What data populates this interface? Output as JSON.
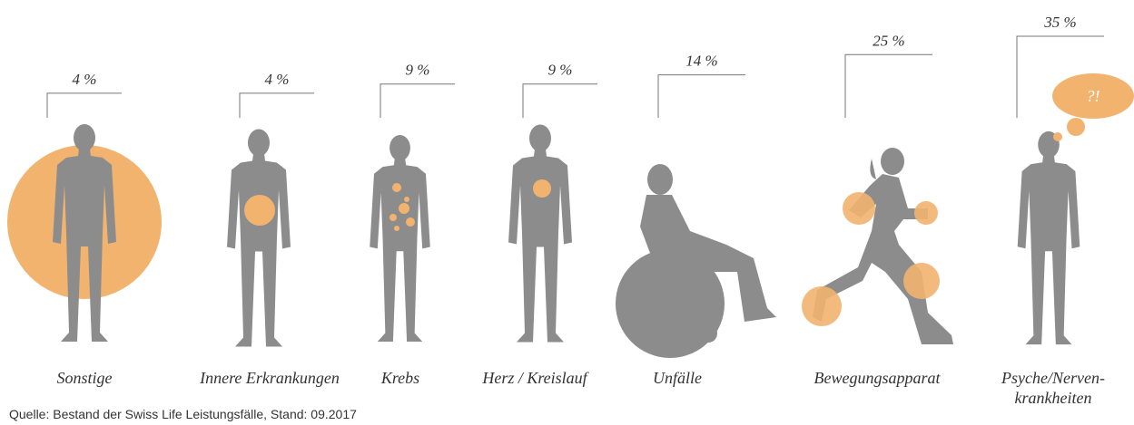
{
  "chart_data": {
    "type": "pictogram",
    "categories": [
      "Sonstige",
      "Innere Erkrankungen",
      "Krebs",
      "Herz / Kreislauf",
      "Unfälle",
      "Bewegungsapparat",
      "Psyche/Nerven-\nkrankheiten"
    ],
    "values": [
      4,
      4,
      9,
      9,
      14,
      25,
      35
    ],
    "value_labels": [
      "4 %",
      "4 %",
      "9 %",
      "9 %",
      "14 %",
      "25 %",
      "35 %"
    ],
    "color": "#8c8c8c",
    "highlight_color": "#f2b36f",
    "thought_bubble": "?!",
    "source": "Quelle: Bestand der Swiss Life Leistungsfälle, Stand: 09.2017"
  }
}
